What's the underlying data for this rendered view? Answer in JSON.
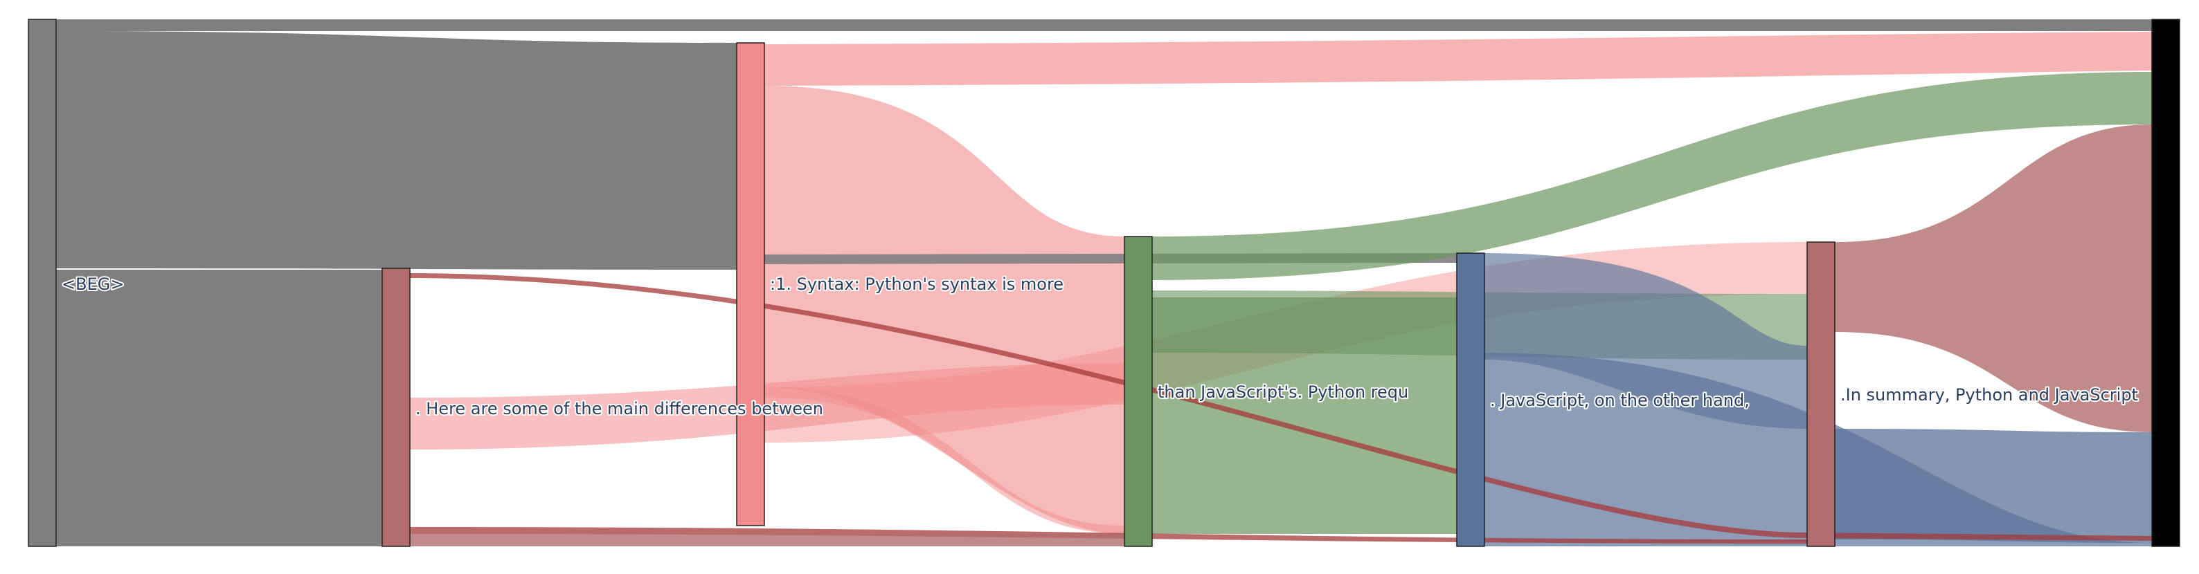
{
  "diagram": {
    "type": "sankey",
    "colors": {
      "gray": "#7f7f7f",
      "red": "#f28c8c",
      "brown": "#b26e6e",
      "green": "#6b9560",
      "blue": "#5c7399",
      "black": "#000000",
      "label": "#2a3f5f"
    },
    "nodes": [
      {
        "id": "beg",
        "label": "<BEG>",
        "color": "#7f7f7f"
      },
      {
        "id": "n_here",
        "label": ". Here are some of the main differences between",
        "color": "#b26e6e"
      },
      {
        "id": "n_syntax",
        "label": ":1. Syntax: Python's syntax is more",
        "color": "#f28c8c"
      },
      {
        "id": "n_than",
        "label": "than JavaScript's. Python requ",
        "color": "#6b9560"
      },
      {
        "id": "n_js",
        "label": ". JavaScript, on the other hand,",
        "color": "#5c7399"
      },
      {
        "id": "n_summary",
        "label": ".In summary, Python and JavaScript",
        "color": "#b26e6e"
      },
      {
        "id": "end",
        "label": "",
        "color": "#000000"
      }
    ]
  }
}
